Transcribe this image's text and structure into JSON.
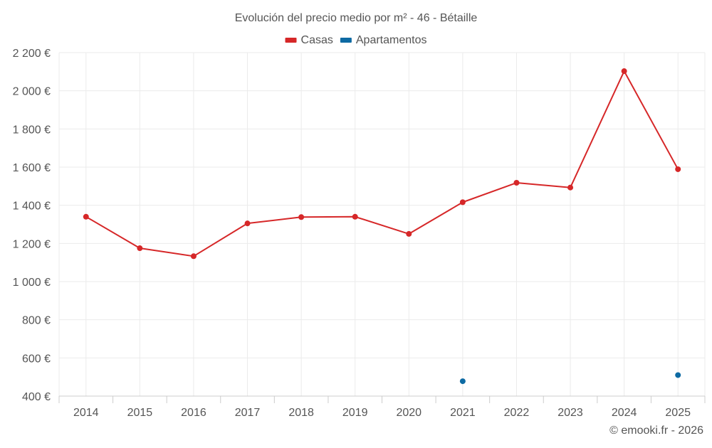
{
  "chart_data": {
    "type": "line",
    "title": "Evolución del precio medio por m² - 46 - Bétaille",
    "categories": [
      "2014",
      "2015",
      "2016",
      "2017",
      "2018",
      "2019",
      "2020",
      "2021",
      "2022",
      "2023",
      "2024",
      "2025"
    ],
    "series": [
      {
        "name": "Casas",
        "color": "#d62728",
        "values": [
          1340,
          1175,
          1133,
          1305,
          1338,
          1340,
          1250,
          1416,
          1518,
          1493,
          2103,
          1589
        ]
      },
      {
        "name": "Apartamentos",
        "color": "#0d6aa3",
        "values": [
          null,
          null,
          null,
          null,
          null,
          null,
          null,
          478,
          null,
          null,
          null,
          510
        ]
      }
    ],
    "ylim": [
      400,
      2200
    ],
    "yticks": [
      400,
      600,
      800,
      1000,
      1200,
      1400,
      1600,
      1800,
      2000,
      2200
    ],
    "ytick_labels": [
      "400 €",
      "600 €",
      "800 €",
      "1 000 €",
      "1 200 €",
      "1 400 €",
      "1 600 €",
      "1 800 €",
      "2 000 €",
      "2 200 €"
    ],
    "xlabel": "",
    "ylabel": "",
    "grid": true,
    "legend": "top-center"
  },
  "credit": "© emooki.fr - 2026",
  "colors": {
    "grid": "#ebebeb",
    "axis": "#cccccc",
    "text": "#555555"
  }
}
